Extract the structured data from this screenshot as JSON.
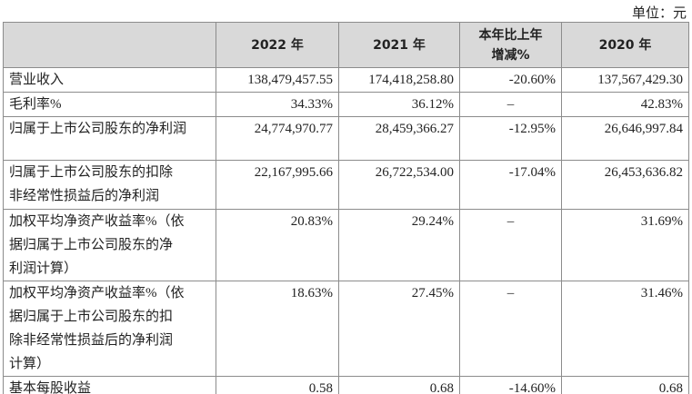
{
  "unit": "单位：元",
  "table": {
    "header": [
      "",
      "2022 年",
      "2021 年",
      "本年比上年增减%",
      "2020 年"
    ],
    "rows": [
      [
        "营业收入",
        "138,479,457.55",
        "174,418,258.80",
        "-20.60%",
        "137,567,429.30"
      ],
      [
        "毛利率%",
        "34.33%",
        "36.12%",
        "–",
        "42.83%"
      ],
      [
        "归属于上市公司股东的净利润",
        "24,774,970.77",
        "28,459,366.27",
        "-12.95%",
        "26,646,997.84"
      ],
      [
        "归属于上市公司股东的扣除\n非经常性损益后的净利润",
        "22,167,995.66",
        "26,722,534.00",
        "-17.04%",
        "26,453,636.82"
      ],
      [
        "加权平均净资产收益率%（依\n据归属于上市公司股东的净\n利润计算）",
        "20.83%",
        "29.24%",
        "–",
        "31.69%"
      ],
      [
        "加权平均净资产收益率%（依\n据归属于上市公司股东的扣\n除非经常性损益后的净利润\n计算）",
        "18.63%",
        "27.45%",
        "–",
        "31.46%"
      ],
      [
        "基本每股收益",
        "0.58",
        "0.68",
        "-14.60%",
        "0.68"
      ]
    ]
  }
}
